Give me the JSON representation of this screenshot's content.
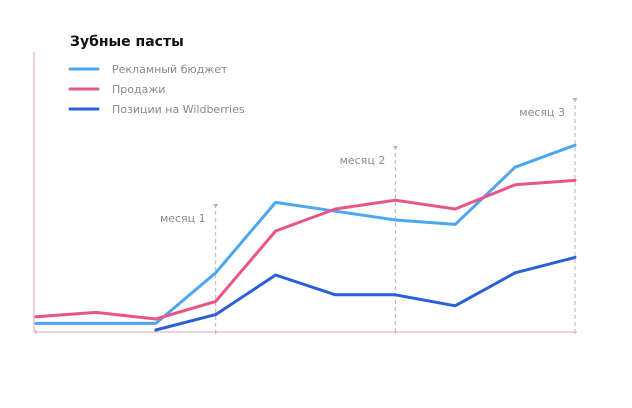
{
  "chart_data": {
    "type": "line",
    "title": "Зубные пасты",
    "legend_position": "top-left",
    "grid": false,
    "x": [
      1,
      2,
      3,
      4,
      5,
      6,
      7,
      8,
      9,
      10
    ],
    "ylim": [
      0,
      100
    ],
    "series": [
      {
        "name": "Рекламный бюджет",
        "color": "#4da6f0",
        "values": [
          3,
          3,
          3,
          26,
          58,
          54,
          50,
          48,
          74,
          84
        ]
      },
      {
        "name": "Продажи",
        "color": "#e8558a",
        "values": [
          6,
          8,
          5,
          13,
          45,
          55,
          59,
          55,
          66,
          68
        ]
      },
      {
        "name": "Позиции на Wildberries",
        "color": "#2a5fd9",
        "values": [
          null,
          null,
          0,
          7,
          25,
          16,
          16,
          11,
          26,
          33
        ]
      }
    ],
    "annotations": [
      {
        "label": "месяц 1",
        "x": 4
      },
      {
        "label": "месяц 2",
        "x": 7
      },
      {
        "label": "месяц 3",
        "x": 10
      }
    ],
    "axis_color": "#d9a3bf",
    "annotation_line_color": "#b5b5b5"
  }
}
